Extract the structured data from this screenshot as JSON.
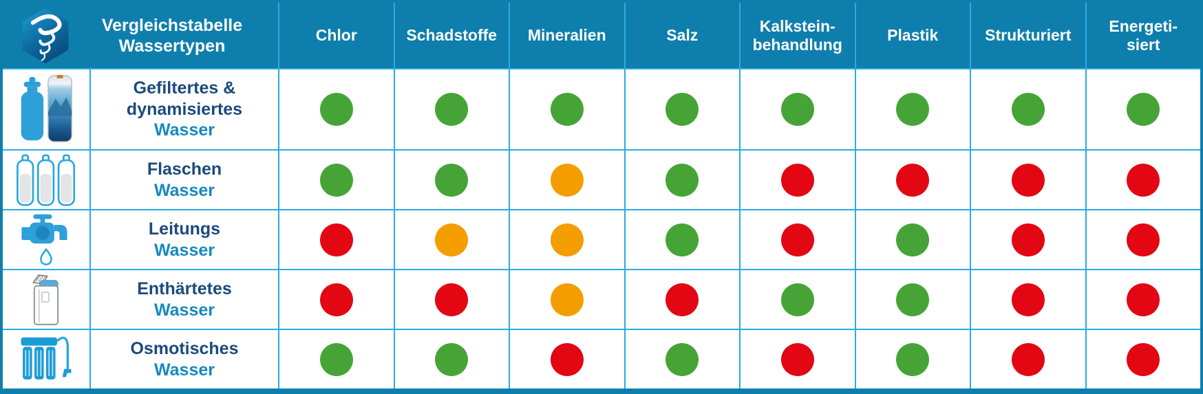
{
  "table": {
    "title": "Vergleichstabelle\nWassertypen",
    "columns": [
      "Chlor",
      "Schadstoffe",
      "Mineralien",
      "Salz",
      "Kalkstein-\nbehandlung",
      "Plastik",
      "Strukturiert",
      "Energeti-\nsiert"
    ],
    "rows": [
      {
        "icon": "filter-cartridge-icon",
        "name": "Gefiltertes &\ndynamisiertes",
        "suffix": "Wasser",
        "ratings": [
          "green",
          "green",
          "green",
          "green",
          "green",
          "green",
          "green",
          "green"
        ]
      },
      {
        "icon": "water-bottles-icon",
        "name": "Flaschen",
        "suffix": "Wasser",
        "ratings": [
          "green",
          "green",
          "orange",
          "green",
          "red",
          "red",
          "red",
          "red"
        ]
      },
      {
        "icon": "tap-faucet-icon",
        "name": "Leitungs",
        "suffix": "Wasser",
        "ratings": [
          "red",
          "orange",
          "orange",
          "green",
          "red",
          "green",
          "red",
          "red"
        ]
      },
      {
        "icon": "water-softener-icon",
        "name": "Enthärtetes",
        "suffix": "Wasser",
        "ratings": [
          "red",
          "red",
          "orange",
          "red",
          "green",
          "green",
          "red",
          "red"
        ]
      },
      {
        "icon": "osmosis-unit-icon",
        "name": "Osmotisches",
        "suffix": "Wasser",
        "ratings": [
          "green",
          "green",
          "red",
          "green",
          "red",
          "green",
          "red",
          "red"
        ]
      }
    ],
    "colors": {
      "green": "#46a437",
      "orange": "#f49d00",
      "red": "#e30613",
      "header_bg": "#0e7fad",
      "grid_line": "#29abe2",
      "name_text": "#1a4a7c",
      "suffix_text": "#1689bd"
    }
  },
  "chart_data": {
    "type": "table",
    "title": "Vergleichstabelle Wassertypen",
    "columns": [
      "Chlor",
      "Schadstoffe",
      "Mineralien",
      "Salz",
      "Kalksteinbehandlung",
      "Plastik",
      "Strukturiert",
      "Energetisiert"
    ],
    "row_labels": [
      "Gefiltertes & dynamisiertes Wasser",
      "Flaschen Wasser",
      "Leitungs Wasser",
      "Enthärtetes Wasser",
      "Osmotisches Wasser"
    ],
    "values": [
      [
        "green",
        "green",
        "green",
        "green",
        "green",
        "green",
        "green",
        "green"
      ],
      [
        "green",
        "green",
        "orange",
        "green",
        "red",
        "red",
        "red",
        "red"
      ],
      [
        "red",
        "orange",
        "orange",
        "green",
        "red",
        "green",
        "red",
        "red"
      ],
      [
        "red",
        "red",
        "orange",
        "red",
        "green",
        "green",
        "red",
        "red"
      ],
      [
        "green",
        "green",
        "red",
        "green",
        "red",
        "green",
        "red",
        "red"
      ]
    ],
    "value_colors": {
      "green": "#46a437",
      "orange": "#f49d00",
      "red": "#e30613"
    },
    "legend_position": "none",
    "grid": true
  }
}
